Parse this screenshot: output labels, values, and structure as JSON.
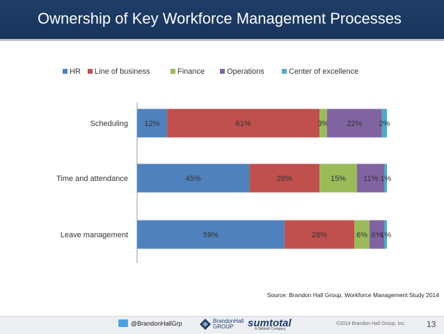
{
  "slide": {
    "title": "Ownership of Key Workforce Management Processes"
  },
  "chart_data": {
    "type": "bar",
    "orientation": "horizontal",
    "stacked": true,
    "categories": [
      "Scheduling",
      "Time and attendance",
      "Leave management"
    ],
    "series": [
      {
        "name": "HR",
        "color": "#4f81bd",
        "values": [
          12,
          45,
          59
        ],
        "labels": [
          "12%",
          "45%",
          "59%"
        ]
      },
      {
        "name": "Line of business",
        "color": "#c0504d",
        "values": [
          61,
          28,
          28
        ],
        "labels": [
          "61%",
          "28%",
          "28%"
        ]
      },
      {
        "name": "Finance",
        "color": "#9bbb59",
        "values": [
          3,
          15,
          6
        ],
        "labels": [
          "3%",
          "15%",
          "6%"
        ]
      },
      {
        "name": "Operations",
        "color": "#8064a2",
        "values": [
          22,
          11,
          6
        ],
        "labels": [
          "22%",
          "11%",
          "6%"
        ]
      },
      {
        "name": "Center of excellence",
        "color": "#4bacc6",
        "values": [
          2,
          1,
          1
        ],
        "labels": [
          "2%",
          "1%",
          "1%"
        ]
      }
    ],
    "xlim": [
      0,
      100
    ],
    "legend": "top",
    "grid": false,
    "source": "Source: Brandon Hall Group, Workforce Management Study 2014"
  },
  "footer": {
    "twitter": "@BrandonHallGrp",
    "logo_text_1": "BrandonHall",
    "logo_text_2": "GROUP",
    "sumtotal": "sumtotal",
    "sumtotal_sub": "A Skillsoft Company",
    "copyright": "©2014 Brandon Hall Group, Inc.",
    "page": "13"
  }
}
